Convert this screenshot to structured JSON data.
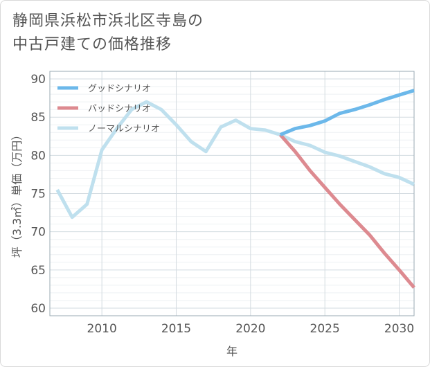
{
  "title": {
    "line1": "静岡県浜松市浜北区寺島の",
    "line2": "中古戸建ての価格推移"
  },
  "chart_data": {
    "type": "line",
    "xlabel": "年",
    "ylabel": "坪（3.3㎡）単価（万円）",
    "xlim": [
      2006.5,
      2031
    ],
    "ylim": [
      59,
      91
    ],
    "x_ticks": [
      2010,
      2015,
      2020,
      2025,
      2030
    ],
    "y_ticks": [
      60,
      65,
      70,
      75,
      80,
      85,
      90
    ],
    "legend_position": "top-left",
    "grid": true,
    "series": [
      {
        "name": "グッドシナリオ",
        "color": "#6cb8ea",
        "x": [
          2022,
          2023,
          2024,
          2025,
          2026,
          2027,
          2028,
          2029,
          2030,
          2031
        ],
        "y": [
          82.7,
          83.5,
          83.9,
          84.5,
          85.5,
          86.0,
          86.6,
          87.3,
          87.9,
          88.5
        ]
      },
      {
        "name": "バッドシナリオ",
        "color": "#dd8a90",
        "x": [
          2022,
          2023,
          2024,
          2025,
          2026,
          2027,
          2028,
          2029,
          2030,
          2031
        ],
        "y": [
          82.7,
          80.5,
          78.0,
          75.8,
          73.6,
          71.6,
          69.6,
          67.2,
          65.0,
          62.7
        ]
      },
      {
        "name": "ノーマルシナリオ",
        "color": "#bfe0ee",
        "x": [
          2007,
          2008,
          2009,
          2010,
          2011,
          2012,
          2013,
          2014,
          2015,
          2016,
          2017,
          2018,
          2019,
          2020,
          2021,
          2022,
          2023,
          2024,
          2025,
          2026,
          2027,
          2028,
          2029,
          2030,
          2031
        ],
        "y": [
          75.5,
          71.9,
          73.6,
          80.7,
          83.5,
          86.0,
          87.0,
          86.0,
          84.0,
          81.8,
          80.5,
          83.7,
          84.6,
          83.5,
          83.3,
          82.7,
          81.8,
          81.3,
          80.4,
          79.9,
          79.2,
          78.5,
          77.6,
          77.1,
          76.2
        ]
      }
    ]
  }
}
